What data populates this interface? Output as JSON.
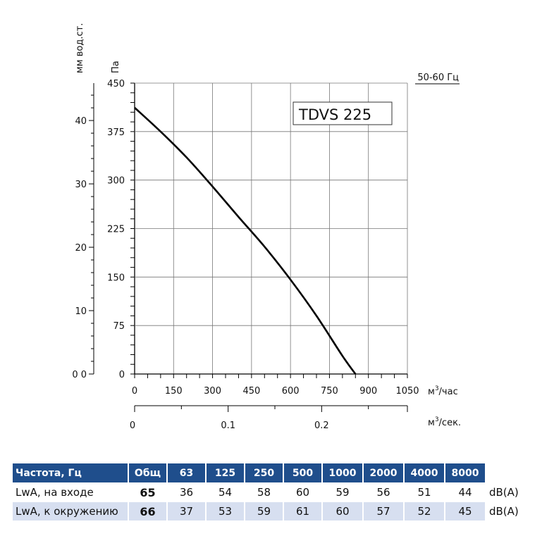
{
  "chart_data": {
    "type": "line",
    "title": "TDVS 225",
    "frequency_label": "50-60 Гц",
    "x_axis": {
      "label": "м³/час",
      "range": [
        0,
        1050
      ],
      "ticks": [
        0,
        150,
        300,
        450,
        600,
        750,
        900,
        1050
      ]
    },
    "x2_axis": {
      "label": "м³/сек.",
      "range": [
        0,
        0.2917
      ],
      "ticks": [
        "0",
        "0.1",
        "0.2"
      ],
      "tick_values": [
        0,
        0.1,
        0.2
      ]
    },
    "y_axis": {
      "label": "Па",
      "range": [
        0,
        450
      ],
      "ticks": [
        0,
        75,
        150,
        225,
        300,
        375,
        450
      ]
    },
    "y2_axis": {
      "label": "мм вод.ст.",
      "range": [
        0,
        45.9
      ],
      "ticks": [
        "0 0",
        "10",
        "20",
        "30",
        "40"
      ],
      "tick_values": [
        0,
        10,
        20,
        30,
        40
      ]
    },
    "grid": true,
    "series": [
      {
        "x": [
          0,
          100,
          200,
          300,
          400,
          500,
          600,
          700,
          800,
          850
        ],
        "y": [
          412,
          375,
          335,
          290,
          243,
          197,
          146,
          90,
          28,
          0
        ]
      }
    ]
  },
  "table": {
    "header": [
      "Частота, Гц",
      "Общ",
      "63",
      "125",
      "250",
      "500",
      "1000",
      "2000",
      "4000",
      "8000"
    ],
    "rows": [
      {
        "label": "LwA, на входе",
        "values": [
          "65",
          "36",
          "54",
          "58",
          "60",
          "59",
          "56",
          "51",
          "44"
        ],
        "unit": "dB(A)"
      },
      {
        "label": "LwA, к окружению",
        "values": [
          "66",
          "37",
          "53",
          "59",
          "61",
          "60",
          "57",
          "52",
          "45"
        ],
        "unit": "dB(A)"
      }
    ]
  }
}
